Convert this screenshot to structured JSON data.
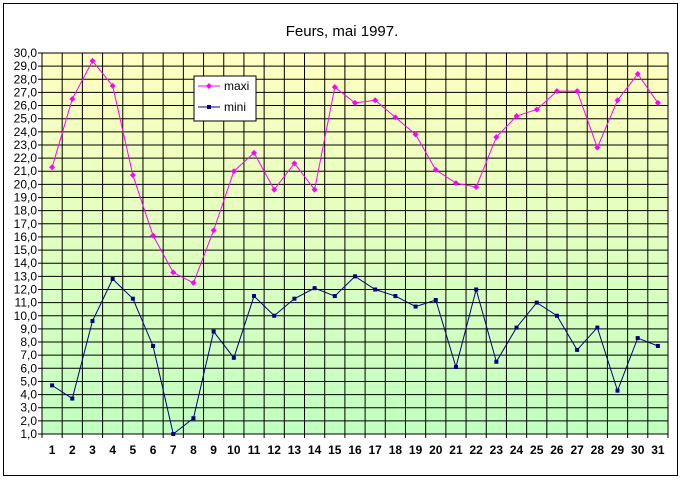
{
  "chart_data": {
    "type": "line",
    "title": "Feurs, mai 1997.",
    "xlabel": "",
    "ylabel": "",
    "x": [
      1,
      2,
      3,
      4,
      5,
      6,
      7,
      8,
      9,
      10,
      11,
      12,
      13,
      14,
      15,
      16,
      17,
      18,
      19,
      20,
      21,
      22,
      23,
      24,
      25,
      26,
      27,
      28,
      29,
      30,
      31
    ],
    "ylim": [
      1,
      30
    ],
    "ytick_step": 1,
    "ytick_format": "one-decimal-comma",
    "grid": true,
    "legend_placement": "top-left-inside",
    "background_gradient": [
      "#ffffc0",
      "#c0ffc0"
    ],
    "series": [
      {
        "name": "maxi",
        "color": "#ff00ff",
        "marker": "diamond",
        "values": [
          21.3,
          26.5,
          29.4,
          27.5,
          20.7,
          16.1,
          13.3,
          12.5,
          16.5,
          21.0,
          22.4,
          19.6,
          21.6,
          19.6,
          27.4,
          26.2,
          26.4,
          25.1,
          23.8,
          21.1,
          20.1,
          19.8,
          23.6,
          25.2,
          25.7,
          27.1,
          27.1,
          22.8,
          26.4,
          28.4,
          26.2
        ]
      },
      {
        "name": "mini",
        "color": "#000080",
        "marker": "square",
        "values": [
          4.7,
          3.7,
          9.6,
          12.8,
          11.3,
          7.7,
          1.0,
          2.2,
          8.8,
          6.8,
          11.5,
          10.0,
          11.3,
          12.1,
          11.5,
          13.0,
          12.0,
          11.5,
          10.7,
          11.2,
          6.1,
          12.0,
          6.5,
          9.1,
          11.0,
          10.0,
          7.4,
          9.1,
          4.3,
          8.3,
          7.7
        ]
      }
    ]
  }
}
